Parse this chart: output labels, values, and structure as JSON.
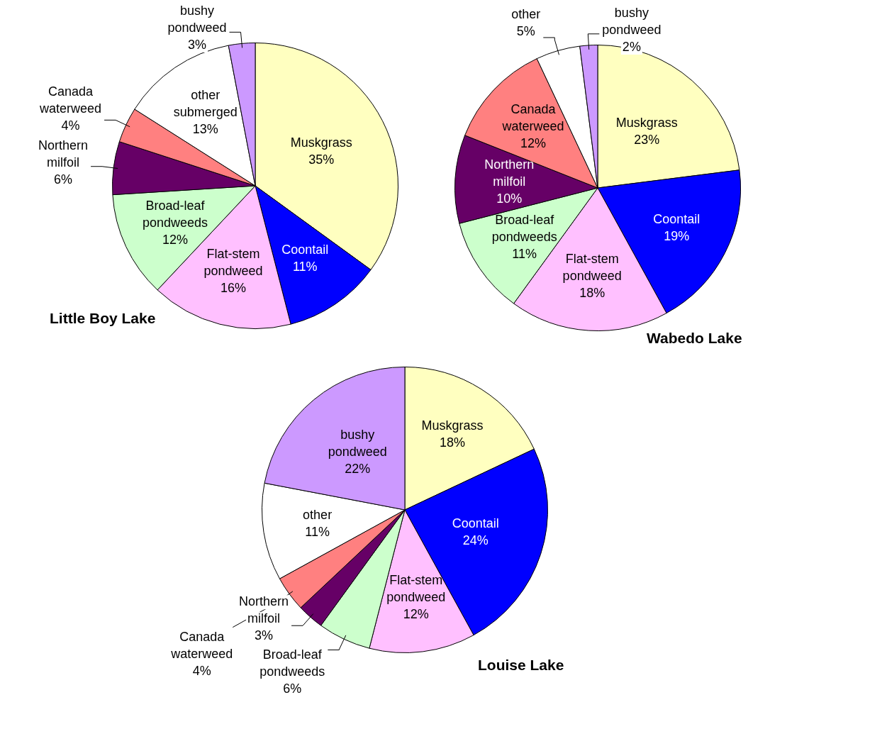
{
  "chart_data": [
    {
      "type": "pie",
      "title": "Little Boy Lake",
      "categories": [
        "Muskgrass",
        "Coontail",
        "Flat-stem pondweed",
        "Broad-leaf pondweeds",
        "Northern milfoil",
        "Canada waterweed",
        "other submerged",
        "bushy pondweed"
      ],
      "values": [
        35,
        11,
        16,
        12,
        6,
        4,
        13,
        3
      ],
      "value_labels": [
        "35%",
        "11%",
        "16%",
        "12%",
        "6%",
        "4%",
        "13%",
        "3%"
      ],
      "colors": [
        "#ffffc0",
        "#0000ff",
        "#ffc0ff",
        "#ccffcc",
        "#660066",
        "#ff8080",
        "#ffffff",
        "#cc99ff"
      ],
      "legend": false
    },
    {
      "type": "pie",
      "title": "Wabedo Lake",
      "categories": [
        "Muskgrass",
        "Coontail",
        "Flat-stem pondweed",
        "Broad-leaf pondweeds",
        "Northern milfoil",
        "Canada waterweed",
        "other",
        "bushy pondweed"
      ],
      "values": [
        23,
        19,
        18,
        11,
        10,
        12,
        5,
        2
      ],
      "value_labels": [
        "23%",
        "19%",
        "18%",
        "11%",
        "10%",
        "12%",
        "5%",
        "2%"
      ],
      "colors": [
        "#ffffc0",
        "#0000ff",
        "#ffc0ff",
        "#ccffcc",
        "#660066",
        "#ff8080",
        "#ffffff",
        "#cc99ff"
      ],
      "legend": false
    },
    {
      "type": "pie",
      "title": "Louise Lake",
      "categories": [
        "Muskgrass",
        "Coontail",
        "Flat-stem pondweed",
        "Broad-leaf pondweeds",
        "Northern milfoil",
        "Canada waterweed",
        "other",
        "bushy pondweed"
      ],
      "values": [
        18,
        24,
        12,
        6,
        3,
        4,
        11,
        22
      ],
      "value_labels": [
        "18%",
        "24%",
        "12%",
        "6%",
        "3%",
        "4%",
        "11%",
        "22%"
      ],
      "colors": [
        "#ffffc0",
        "#0000ff",
        "#ffc0ff",
        "#ccffcc",
        "#660066",
        "#ff8080",
        "#ffffff",
        "#cc99ff"
      ],
      "legend": false
    }
  ]
}
